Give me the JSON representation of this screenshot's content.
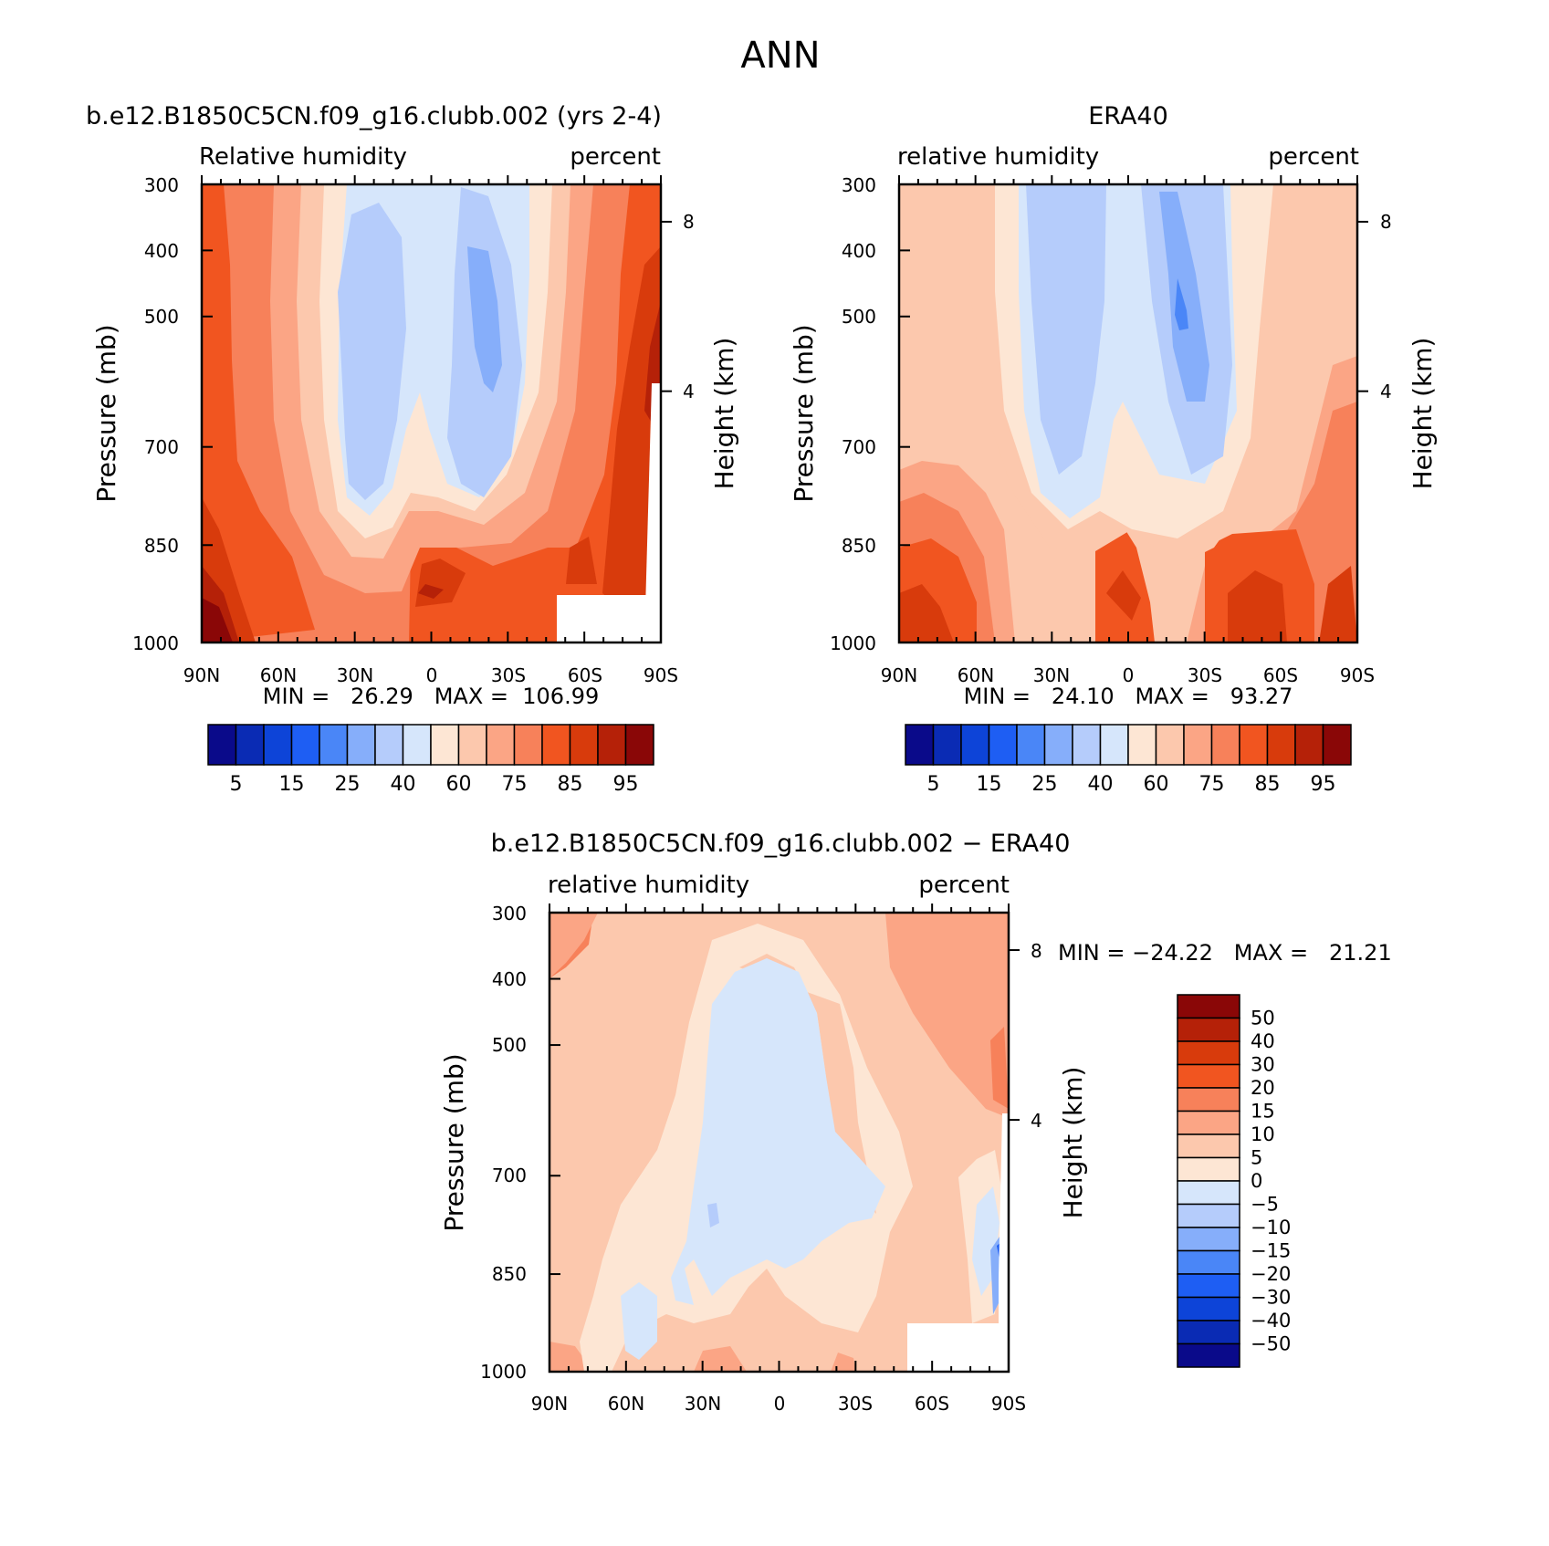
{
  "figure": {
    "title": "ANN"
  },
  "chart_data": [
    {
      "type": "heatmap",
      "panel": "model",
      "title": "b.e12.B1850C5CN.f09_g16.clubb.002 (yrs 2-4)",
      "left_label": "Relative humidity",
      "right_label": "percent",
      "xlabel": "",
      "ylabel": "Pressure (mb)",
      "y2label": "Height (km)",
      "x_ticks": [
        "90N",
        "60N",
        "30N",
        "0",
        "30S",
        "60S",
        "90S"
      ],
      "x_range": [
        90,
        -90
      ],
      "y_ticks": [
        "300",
        "400",
        "500",
        "700",
        "850",
        "1000"
      ],
      "y_range": [
        1000,
        300
      ],
      "y_scale": "log",
      "y2_ticks": [
        "8",
        "4"
      ],
      "stats": "MIN =   26.29   MAX =  106.99",
      "colorbar": {
        "orientation": "horizontal",
        "labels": [
          "5",
          "15",
          "25",
          "40",
          "60",
          "75",
          "85",
          "95"
        ],
        "colors": [
          "#0a0a8a",
          "#0a2bb4",
          "#0d44d8",
          "#1e5ef3",
          "#4a86f7",
          "#86aefa",
          "#b5ccfb",
          "#d6e6fb",
          "#fde6d4",
          "#fcc8ad",
          "#fba585",
          "#f7815a",
          "#f15520",
          "#d83b0c",
          "#b52108",
          "#8a0707"
        ]
      }
    },
    {
      "type": "heatmap",
      "panel": "observation",
      "title": "ERA40",
      "left_label": "relative humidity",
      "right_label": "percent",
      "xlabel": "",
      "ylabel": "Pressure (mb)",
      "y2label": "Height (km)",
      "x_ticks": [
        "90N",
        "60N",
        "30N",
        "0",
        "30S",
        "60S",
        "90S"
      ],
      "x_range": [
        90,
        -90
      ],
      "y_ticks": [
        "300",
        "400",
        "500",
        "700",
        "850",
        "1000"
      ],
      "y_range": [
        1000,
        300
      ],
      "y_scale": "log",
      "y2_ticks": [
        "8",
        "4"
      ],
      "stats": "MIN =   24.10   MAX =   93.27",
      "colorbar": {
        "orientation": "horizontal",
        "labels": [
          "5",
          "15",
          "25",
          "40",
          "60",
          "75",
          "85",
          "95"
        ],
        "colors": [
          "#0a0a8a",
          "#0a2bb4",
          "#0d44d8",
          "#1e5ef3",
          "#4a86f7",
          "#86aefa",
          "#b5ccfb",
          "#d6e6fb",
          "#fde6d4",
          "#fcc8ad",
          "#fba585",
          "#f7815a",
          "#f15520",
          "#d83b0c",
          "#b52108",
          "#8a0707"
        ]
      }
    },
    {
      "type": "heatmap",
      "panel": "difference",
      "title": "b.e12.B1850C5CN.f09_g16.clubb.002 − ERA40",
      "left_label": "relative humidity",
      "right_label": "percent",
      "xlabel": "",
      "ylabel": "Pressure (mb)",
      "y2label": "Height (km)",
      "x_ticks": [
        "90N",
        "60N",
        "30N",
        "0",
        "30S",
        "60S",
        "90S"
      ],
      "x_range": [
        90,
        -90
      ],
      "y_ticks": [
        "300",
        "400",
        "500",
        "700",
        "850",
        "1000"
      ],
      "y_range": [
        1000,
        300
      ],
      "y_scale": "log",
      "y2_ticks": [
        "8",
        "4"
      ],
      "stats": "MIN = −24.22   MAX =   21.21",
      "colorbar": {
        "orientation": "vertical",
        "labels": [
          "50",
          "40",
          "30",
          "20",
          "15",
          "10",
          "5",
          "0",
          "−5",
          "−10",
          "−15",
          "−20",
          "−30",
          "−40",
          "−50"
        ],
        "colors": [
          "#8a0707",
          "#b52108",
          "#d83b0c",
          "#f15520",
          "#f7815a",
          "#fba585",
          "#fcc8ad",
          "#fde6d4",
          "#d6e6fb",
          "#b5ccfb",
          "#86aefa",
          "#4a86f7",
          "#1e5ef3",
          "#0d44d8",
          "#0a2bb4",
          "#0a0a8a"
        ]
      }
    }
  ]
}
